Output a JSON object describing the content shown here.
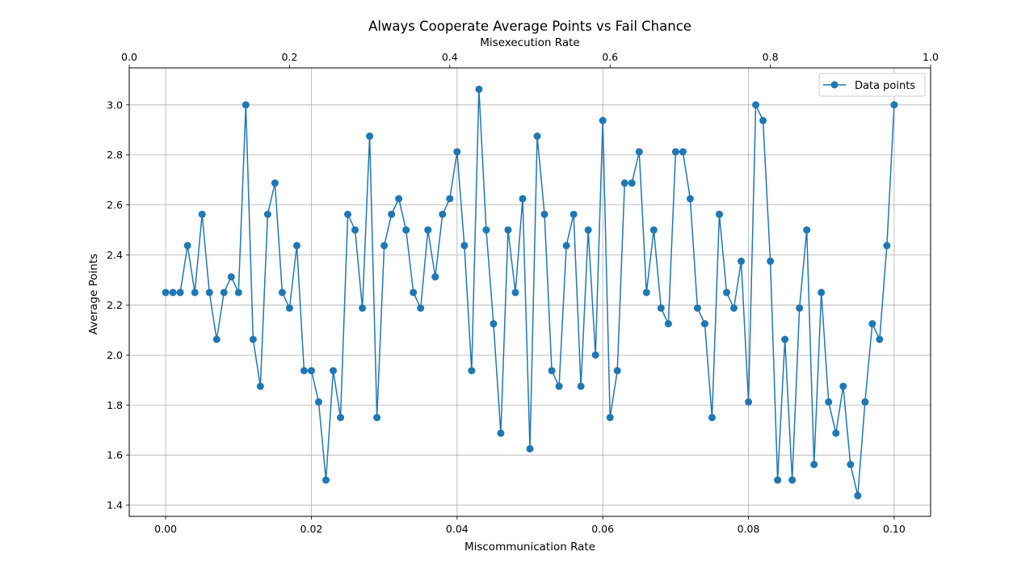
{
  "chart_data": {
    "type": "line",
    "title": "Always Cooperate Average Points vs Fail Chance",
    "xlabel": "Miscommunication Rate",
    "ylabel": "Average Points",
    "top_xlabel": "Misexecution Rate",
    "xlim": [
      -0.005,
      0.105
    ],
    "ylim": [
      1.355,
      3.148
    ],
    "top_xlim": [
      0.0,
      1.0
    ],
    "x_ticks": [
      "0.00",
      "0.02",
      "0.04",
      "0.06",
      "0.08",
      "0.10"
    ],
    "y_ticks": [
      "1.4",
      "1.6",
      "1.8",
      "2.0",
      "2.2",
      "2.4",
      "2.6",
      "2.8",
      "3.0"
    ],
    "top_x_ticks": [
      "0.0",
      "0.2",
      "0.4",
      "0.6",
      "0.8",
      "1.0"
    ],
    "grid": true,
    "legend_position": "top-right",
    "series_color": "#1f77b4",
    "series": [
      {
        "name": "Data points",
        "x": [
          0.0,
          0.001,
          0.002,
          0.003,
          0.004,
          0.005,
          0.006,
          0.007,
          0.008,
          0.009,
          0.01,
          0.011,
          0.012,
          0.013,
          0.014,
          0.015,
          0.016,
          0.017,
          0.018,
          0.019,
          0.02,
          0.021,
          0.022,
          0.023,
          0.024,
          0.025,
          0.026,
          0.027,
          0.028,
          0.029,
          0.03,
          0.031,
          0.032,
          0.033,
          0.034,
          0.035,
          0.036,
          0.037,
          0.038,
          0.039,
          0.04,
          0.041,
          0.042,
          0.043,
          0.044,
          0.045,
          0.046,
          0.047,
          0.048,
          0.049,
          0.05,
          0.051,
          0.052,
          0.053,
          0.054,
          0.055,
          0.056,
          0.057,
          0.058,
          0.059,
          0.06,
          0.061,
          0.062,
          0.063,
          0.064,
          0.065,
          0.066,
          0.067,
          0.068,
          0.069,
          0.07,
          0.071,
          0.072,
          0.073,
          0.074,
          0.075,
          0.076,
          0.077,
          0.078,
          0.079,
          0.08,
          0.081,
          0.082,
          0.083,
          0.084,
          0.085,
          0.086,
          0.087,
          0.088,
          0.089,
          0.09,
          0.091,
          0.092,
          0.093,
          0.094,
          0.095,
          0.096,
          0.097,
          0.098,
          0.099,
          0.1
        ],
        "values": [
          2.25,
          2.25,
          2.25,
          2.4375,
          2.25,
          2.5625,
          2.25,
          2.0625,
          2.25,
          2.3125,
          2.25,
          3.0,
          2.0625,
          1.875,
          2.5625,
          2.6875,
          2.25,
          2.1875,
          2.4375,
          1.9375,
          1.9375,
          1.8125,
          1.5,
          1.9375,
          1.75,
          2.5625,
          2.5,
          2.1875,
          2.875,
          1.75,
          2.4375,
          2.5625,
          2.625,
          2.5,
          2.25,
          2.1875,
          2.5,
          2.3125,
          2.5625,
          2.625,
          2.8125,
          2.4375,
          1.9375,
          3.0625,
          2.5,
          2.125,
          1.6875,
          2.5,
          2.25,
          2.625,
          1.625,
          2.875,
          2.5625,
          1.9375,
          1.875,
          2.4375,
          2.5625,
          1.875,
          2.5,
          2.0,
          2.9375,
          1.75,
          1.9375,
          2.6875,
          2.6875,
          2.8125,
          2.25,
          2.5,
          2.1875,
          2.125,
          2.8125,
          2.8125,
          2.625,
          2.1875,
          2.125,
          1.75,
          2.5625,
          2.25,
          2.1875,
          2.375,
          1.8125,
          3.0,
          2.9375,
          2.375,
          1.5,
          2.0625,
          1.5,
          2.1875,
          2.5,
          1.5625,
          2.25,
          1.8125,
          1.6875,
          1.875,
          1.5625,
          1.4375,
          1.8125,
          2.125,
          2.0625,
          2.4375,
          3.0
        ]
      }
    ]
  }
}
